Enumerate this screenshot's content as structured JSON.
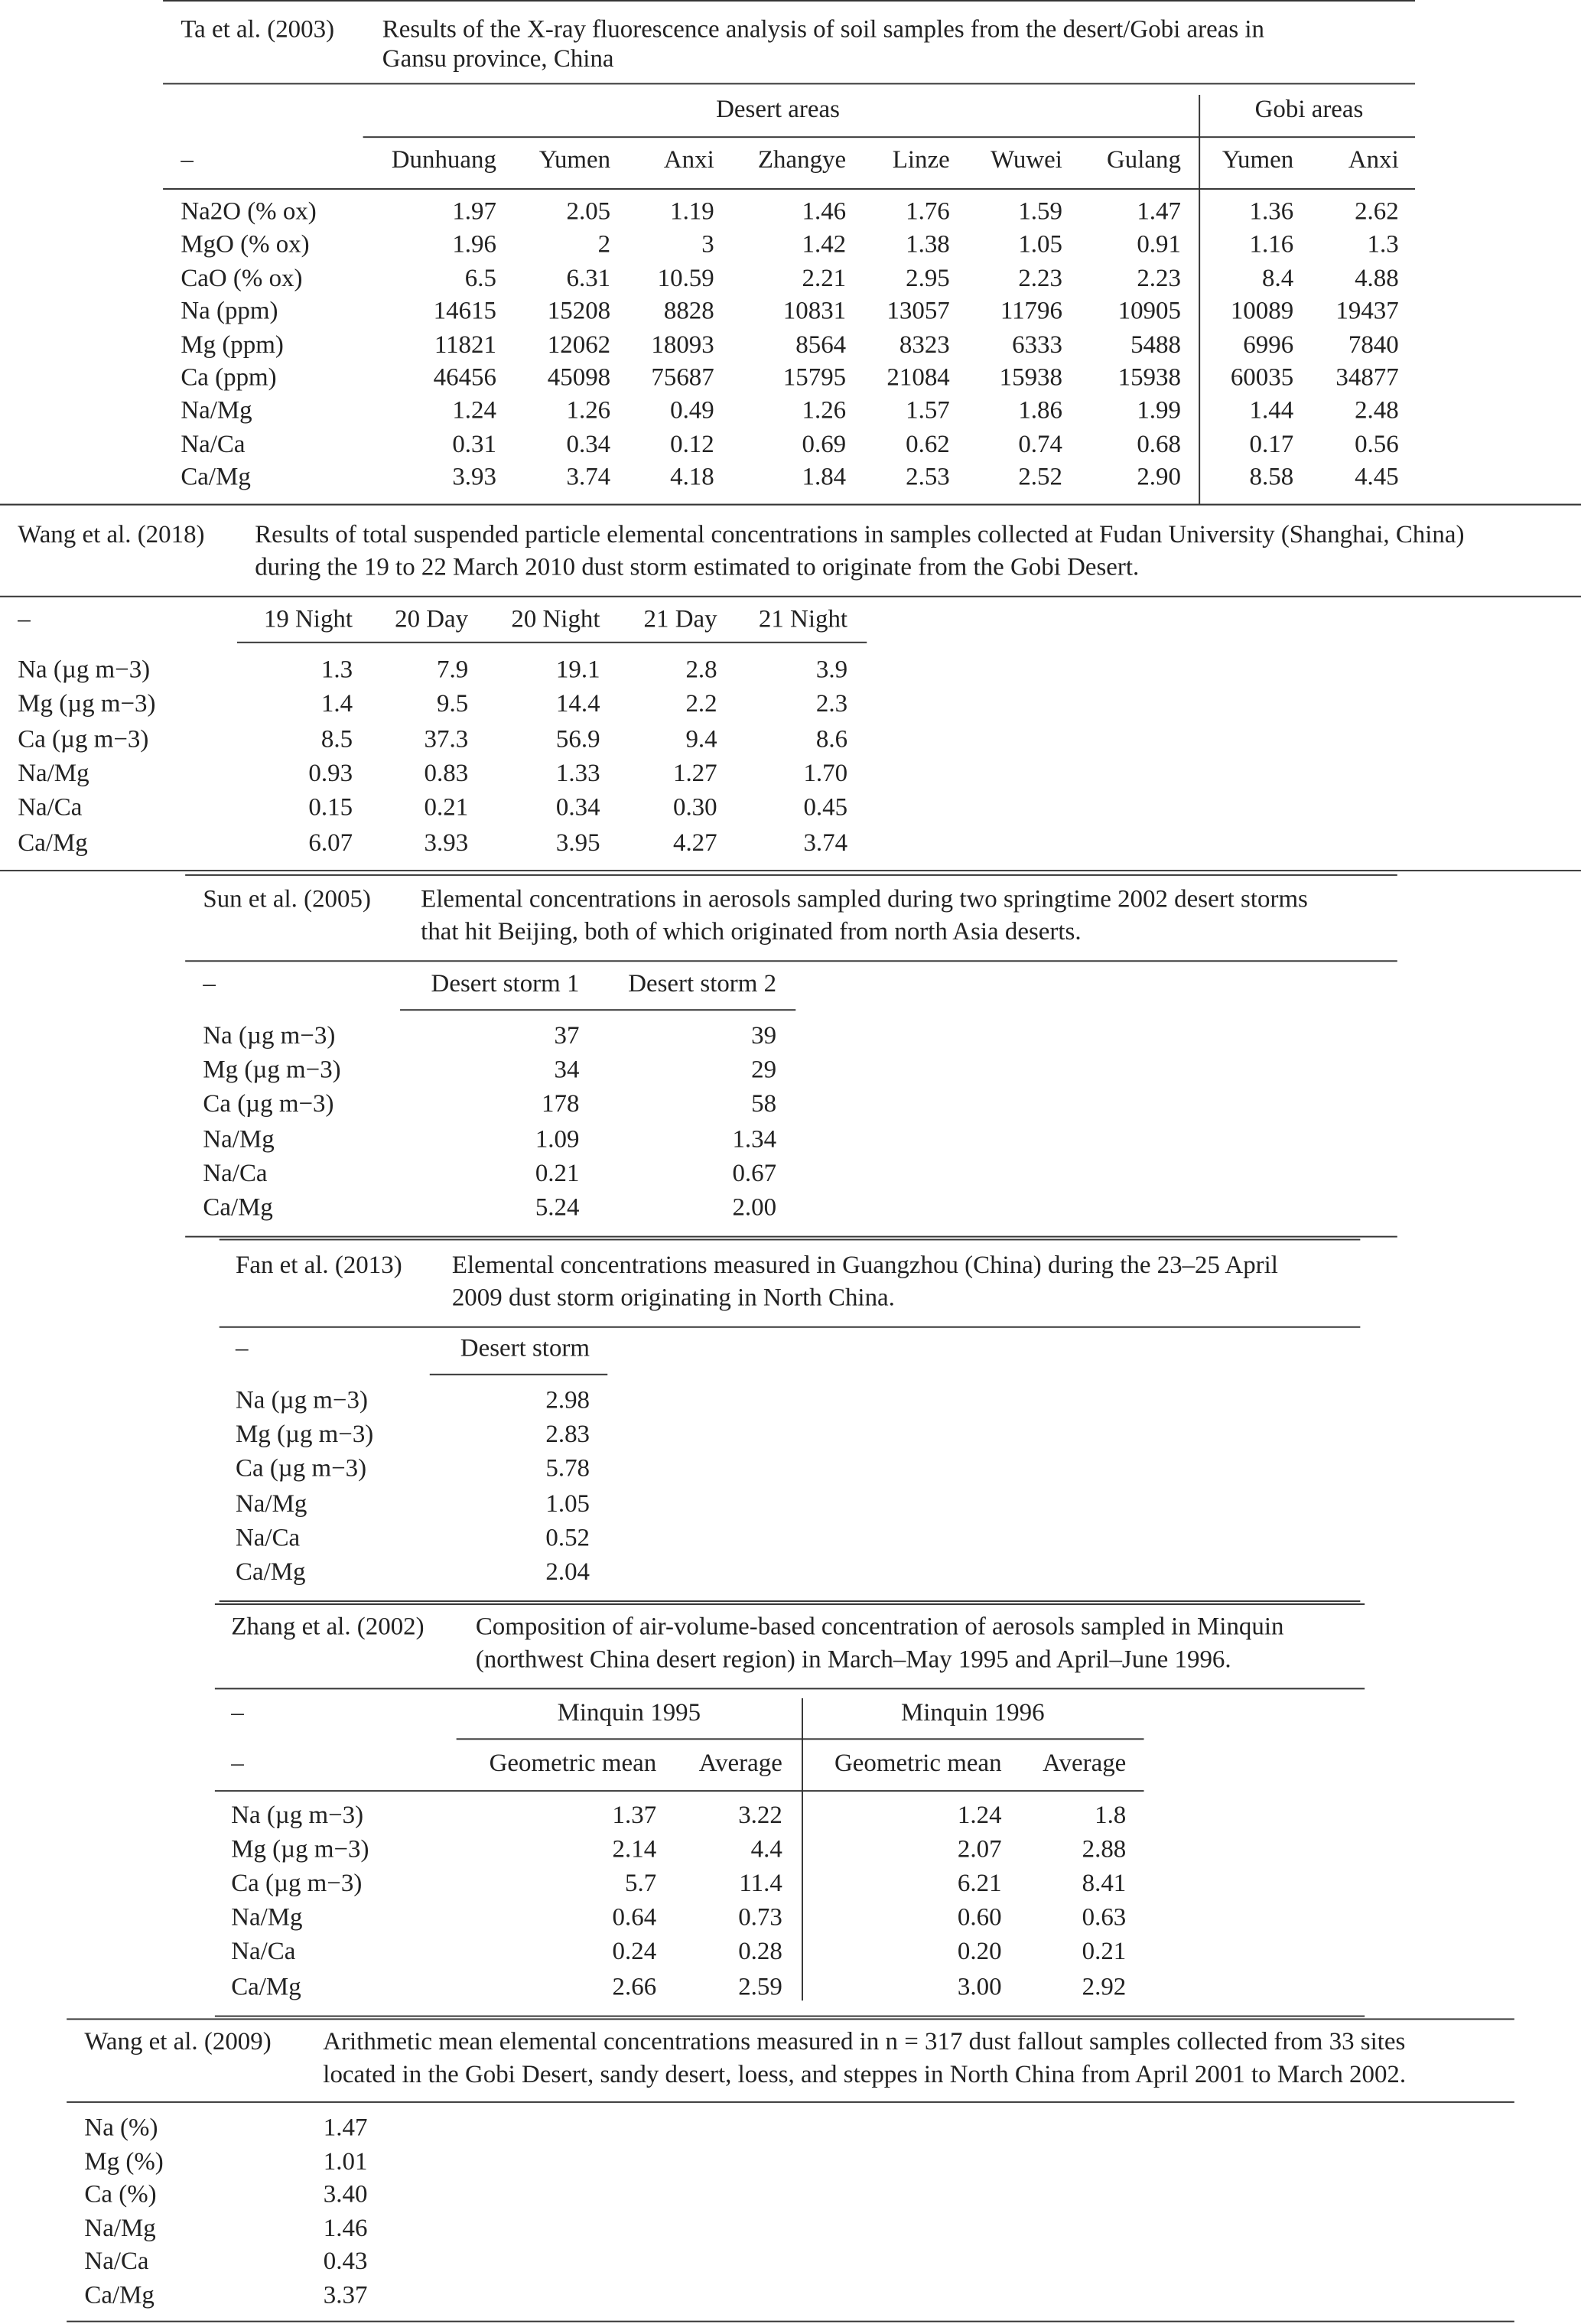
{
  "sections": [
    {
      "citation": "Ta et al. (2003)",
      "description": [
        "Results of the X-ray fluorescence analysis of soil samples from the desert/Gobi areas in",
        "Gansu province, China"
      ],
      "groups": [
        "Desert areas",
        "Gobi areas"
      ],
      "header_label": "–",
      "columns": [
        "Dunhuang",
        "Yumen",
        "Anxi",
        "Zhangye",
        "Linze",
        "Wuwei",
        "Gulang",
        "Yumen",
        "Anxi"
      ],
      "rows": [
        {
          "label": "Na2O (% ox)",
          "values": [
            "1.97",
            "2.05",
            "1.19",
            "1.46",
            "1.76",
            "1.59",
            "1.47",
            "1.36",
            "2.62"
          ]
        },
        {
          "label": "MgO (% ox)",
          "values": [
            "1.96",
            "2",
            "3",
            "1.42",
            "1.38",
            "1.05",
            "0.91",
            "1.16",
            "1.3"
          ]
        },
        {
          "label": "CaO (% ox)",
          "values": [
            "6.5",
            "6.31",
            "10.59",
            "2.21",
            "2.95",
            "2.23",
            "2.23",
            "8.4",
            "4.88"
          ]
        },
        {
          "label": "Na (ppm)",
          "values": [
            "14615",
            "15208",
            "8828",
            "10831",
            "13057",
            "11796",
            "10905",
            "10089",
            "19437"
          ]
        },
        {
          "label": "Mg (ppm)",
          "values": [
            "11821",
            "12062",
            "18093",
            "8564",
            "8323",
            "6333",
            "5488",
            "6996",
            "7840"
          ]
        },
        {
          "label": "Ca (ppm)",
          "values": [
            "46456",
            "45098",
            "75687",
            "15795",
            "21084",
            "15938",
            "15938",
            "60035",
            "34877"
          ]
        },
        {
          "label": "Na/Mg",
          "values": [
            "1.24",
            "1.26",
            "0.49",
            "1.26",
            "1.57",
            "1.86",
            "1.99",
            "1.44",
            "2.48"
          ]
        },
        {
          "label": "Na/Ca",
          "values": [
            "0.31",
            "0.34",
            "0.12",
            "0.69",
            "0.62",
            "0.74",
            "0.68",
            "0.17",
            "0.56"
          ]
        },
        {
          "label": "Ca/Mg",
          "values": [
            "3.93",
            "3.74",
            "4.18",
            "1.84",
            "2.53",
            "2.52",
            "2.90",
            "8.58",
            "4.45"
          ]
        }
      ]
    },
    {
      "citation": "Wang et al. (2018)",
      "description": [
        "Results of total suspended particle elemental concentrations in samples collected at Fudan University (Shanghai, China)",
        "during the 19 to 22 March 2010 dust storm estimated to originate from the Gobi Desert."
      ],
      "header_label": "–",
      "columns": [
        "19 Night",
        "20 Day",
        "20 Night",
        "21 Day",
        "21 Night"
      ],
      "rows": [
        {
          "label": "Na (µg m−3)",
          "values": [
            "1.3",
            "7.9",
            "19.1",
            "2.8",
            "3.9"
          ]
        },
        {
          "label": "Mg (µg m−3)",
          "values": [
            "1.4",
            "9.5",
            "14.4",
            "2.2",
            "2.3"
          ]
        },
        {
          "label": "Ca (µg m−3)",
          "values": [
            "8.5",
            "37.3",
            "56.9",
            "9.4",
            "8.6"
          ]
        },
        {
          "label": "Na/Mg",
          "values": [
            "0.93",
            "0.83",
            "1.33",
            "1.27",
            "1.70"
          ]
        },
        {
          "label": "Na/Ca",
          "values": [
            "0.15",
            "0.21",
            "0.34",
            "0.30",
            "0.45"
          ]
        },
        {
          "label": "Ca/Mg",
          "values": [
            "6.07",
            "3.93",
            "3.95",
            "4.27",
            "3.74"
          ]
        }
      ]
    },
    {
      "citation": "Sun et al. (2005)",
      "description": [
        "Elemental concentrations in aerosols sampled during two springtime 2002 desert storms",
        "that hit Beijing, both of which originated from north Asia deserts."
      ],
      "header_label": "–",
      "columns": [
        "Desert storm 1",
        "Desert storm 2"
      ],
      "rows": [
        {
          "label": "Na (µg m−3)",
          "values": [
            "37",
            "39"
          ]
        },
        {
          "label": "Mg (µg m−3)",
          "values": [
            "34",
            "29"
          ]
        },
        {
          "label": "Ca (µg m−3)",
          "values": [
            "178",
            "58"
          ]
        },
        {
          "label": "Na/Mg",
          "values": [
            "1.09",
            "1.34"
          ]
        },
        {
          "label": "Na/Ca",
          "values": [
            "0.21",
            "0.67"
          ]
        },
        {
          "label": "Ca/Mg",
          "values": [
            "5.24",
            "2.00"
          ]
        }
      ]
    },
    {
      "citation": "Fan et al. (2013)",
      "description": [
        "Elemental concentrations measured in Guangzhou (China) during the 23–25 April",
        "2009 dust storm originating in North China."
      ],
      "header_label": "–",
      "columns": [
        "Desert storm"
      ],
      "rows": [
        {
          "label": "Na (µg m−3)",
          "values": [
            "2.98"
          ]
        },
        {
          "label": "Mg (µg m−3)",
          "values": [
            "2.83"
          ]
        },
        {
          "label": "Ca (µg m−3)",
          "values": [
            "5.78"
          ]
        },
        {
          "label": "Na/Mg",
          "values": [
            "1.05"
          ]
        },
        {
          "label": "Na/Ca",
          "values": [
            "0.52"
          ]
        },
        {
          "label": "Ca/Mg",
          "values": [
            "2.04"
          ]
        }
      ]
    },
    {
      "citation": "Zhang et al. (2002)",
      "description": [
        "Composition of air-volume-based concentration of aerosols sampled in Minquin",
        "(northwest China desert region) in March–May 1995 and April–June 1996."
      ],
      "groups": [
        "Minquin 1995",
        "Minquin 1996"
      ],
      "group_label": "–",
      "header_label": "–",
      "columns": [
        "Geometric mean",
        "Average",
        "Geometric mean",
        "Average"
      ],
      "rows": [
        {
          "label": "Na (µg m−3)",
          "values": [
            "1.37",
            "3.22",
            "1.24",
            "1.8"
          ]
        },
        {
          "label": "Mg (µg m−3)",
          "values": [
            "2.14",
            "4.4",
            "2.07",
            "2.88"
          ]
        },
        {
          "label": "Ca (µg m−3)",
          "values": [
            "5.7",
            "11.4",
            "6.21",
            "8.41"
          ]
        },
        {
          "label": "Na/Mg",
          "values": [
            "0.64",
            "0.73",
            "0.60",
            "0.63"
          ]
        },
        {
          "label": "Na/Ca",
          "values": [
            "0.24",
            "0.28",
            "0.20",
            "0.21"
          ]
        },
        {
          "label": "Ca/Mg",
          "values": [
            "2.66",
            "2.59",
            "3.00",
            "2.92"
          ]
        }
      ]
    },
    {
      "citation": "Wang et al. (2009)",
      "description": [
        "Arithmetic mean elemental concentrations measured in n = 317 dust fallout samples collected from 33 sites",
        "located in the Gobi Desert, sandy desert, loess, and steppes in North China from April 2001 to March 2002."
      ],
      "columns": [],
      "rows": [
        {
          "label": "Na (%)",
          "values": [
            "1.47"
          ]
        },
        {
          "label": "Mg (%)",
          "values": [
            "1.01"
          ]
        },
        {
          "label": "Ca (%)",
          "values": [
            "3.40"
          ]
        },
        {
          "label": "Na/Mg",
          "values": [
            "1.46"
          ]
        },
        {
          "label": "Na/Ca",
          "values": [
            "0.43"
          ]
        },
        {
          "label": "Ca/Mg",
          "values": [
            "3.37"
          ]
        }
      ]
    }
  ]
}
